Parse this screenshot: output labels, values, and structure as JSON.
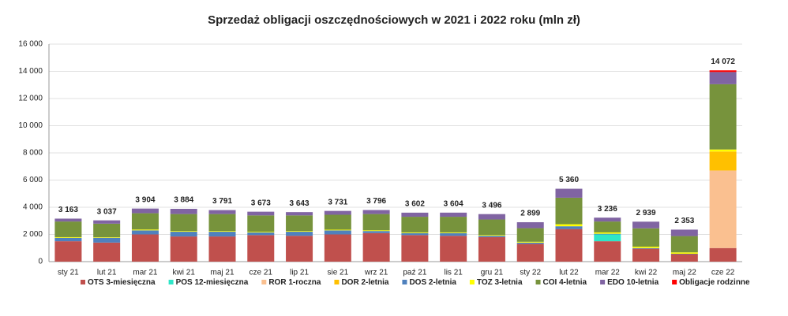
{
  "chart_data": {
    "type": "stacked_bar",
    "title": "Sprzedaż obligacji oszczędnościowych w 2021 i 2022 roku (mln zł)",
    "categories": [
      "sty 21",
      "lut 21",
      "mar 21",
      "kwi 21",
      "maj 21",
      "cze 21",
      "lip 21",
      "sie 21",
      "wrz 21",
      "paź 21",
      "lis 21",
      "gru 21",
      "sty 22",
      "lut 22",
      "mar 22",
      "kwi 22",
      "maj 22",
      "cze 22"
    ],
    "series": [
      {
        "name": "OTS 3-miesięczna",
        "color": "#c0504d",
        "values": [
          1500,
          1400,
          2000,
          1850,
          1850,
          1950,
          1900,
          2000,
          2100,
          1950,
          1900,
          1800,
          1300,
          2400,
          1500,
          950,
          550,
          1000
        ]
      },
      {
        "name": "POS 12-miesięczna",
        "color": "#2ee6c8",
        "values": [
          0,
          0,
          0,
          0,
          0,
          0,
          0,
          0,
          0,
          0,
          0,
          0,
          0,
          0,
          500,
          0,
          0,
          0
        ]
      },
      {
        "name": "ROR 1-roczna",
        "color": "#fac090",
        "values": [
          0,
          0,
          0,
          0,
          0,
          0,
          0,
          0,
          0,
          0,
          0,
          0,
          0,
          0,
          0,
          0,
          0,
          5700
        ]
      },
      {
        "name": "DOR 2-letnia",
        "color": "#ffc000",
        "values": [
          0,
          0,
          0,
          0,
          0,
          0,
          0,
          0,
          0,
          0,
          0,
          0,
          0,
          0,
          0,
          0,
          0,
          1400
        ]
      },
      {
        "name": "DOS 2-letnia",
        "color": "#4f81bd",
        "values": [
          250,
          350,
          300,
          350,
          350,
          200,
          300,
          300,
          150,
          150,
          200,
          100,
          100,
          200,
          50,
          50,
          30,
          0
        ]
      },
      {
        "name": "TOZ 3-letnia",
        "color": "#ffff00",
        "values": [
          50,
          40,
          60,
          50,
          50,
          50,
          50,
          50,
          50,
          50,
          50,
          50,
          60,
          150,
          100,
          100,
          100,
          150
        ]
      },
      {
        "name": "COI 4-letnia",
        "color": "#77933c",
        "values": [
          1150,
          1000,
          1200,
          1250,
          1250,
          1200,
          1150,
          1100,
          1200,
          1150,
          1150,
          1150,
          1000,
          1950,
          800,
          1350,
          1200,
          4800
        ]
      },
      {
        "name": "EDO 10-letnia",
        "color": "#8064a2",
        "values": [
          213,
          247,
          344,
          384,
          291,
          273,
          243,
          281,
          296,
          302,
          304,
          396,
          439,
          660,
          286,
          489,
          473,
          900
        ]
      },
      {
        "name": "Obligacje rodzinne",
        "color": "#ff0000",
        "values": [
          0,
          0,
          0,
          0,
          0,
          0,
          0,
          0,
          0,
          0,
          0,
          0,
          0,
          0,
          0,
          0,
          0,
          122
        ]
      }
    ],
    "totals": [
      3163,
      3037,
      3904,
      3884,
      3791,
      3673,
      3643,
      3731,
      3796,
      3602,
      3604,
      3496,
      2899,
      5360,
      3236,
      2939,
      2353,
      14072
    ],
    "total_labels": [
      "3 163",
      "3 037",
      "3 904",
      "3 884",
      "3 791",
      "3 673",
      "3 643",
      "3 731",
      "3 796",
      "3 602",
      "3 604",
      "3 496",
      "2 899",
      "5 360",
      "3 236",
      "2 939",
      "2 353",
      "14 072"
    ],
    "ylim": [
      0,
      16000
    ],
    "yticks": [
      0,
      {
        "value": 2000,
        "label": "2 000"
      },
      {
        "value": 4000,
        "label": "4 000"
      },
      {
        "value": 6000,
        "label": "6 000"
      },
      {
        "value": 8000,
        "label": "8 000"
      },
      {
        "value": 10000,
        "label": "10 000"
      },
      {
        "value": 12000,
        "label": "12 000"
      },
      {
        "value": 14000,
        "label": "14 000"
      },
      {
        "value": 16000,
        "label": "16 000"
      }
    ],
    "grid": true
  }
}
